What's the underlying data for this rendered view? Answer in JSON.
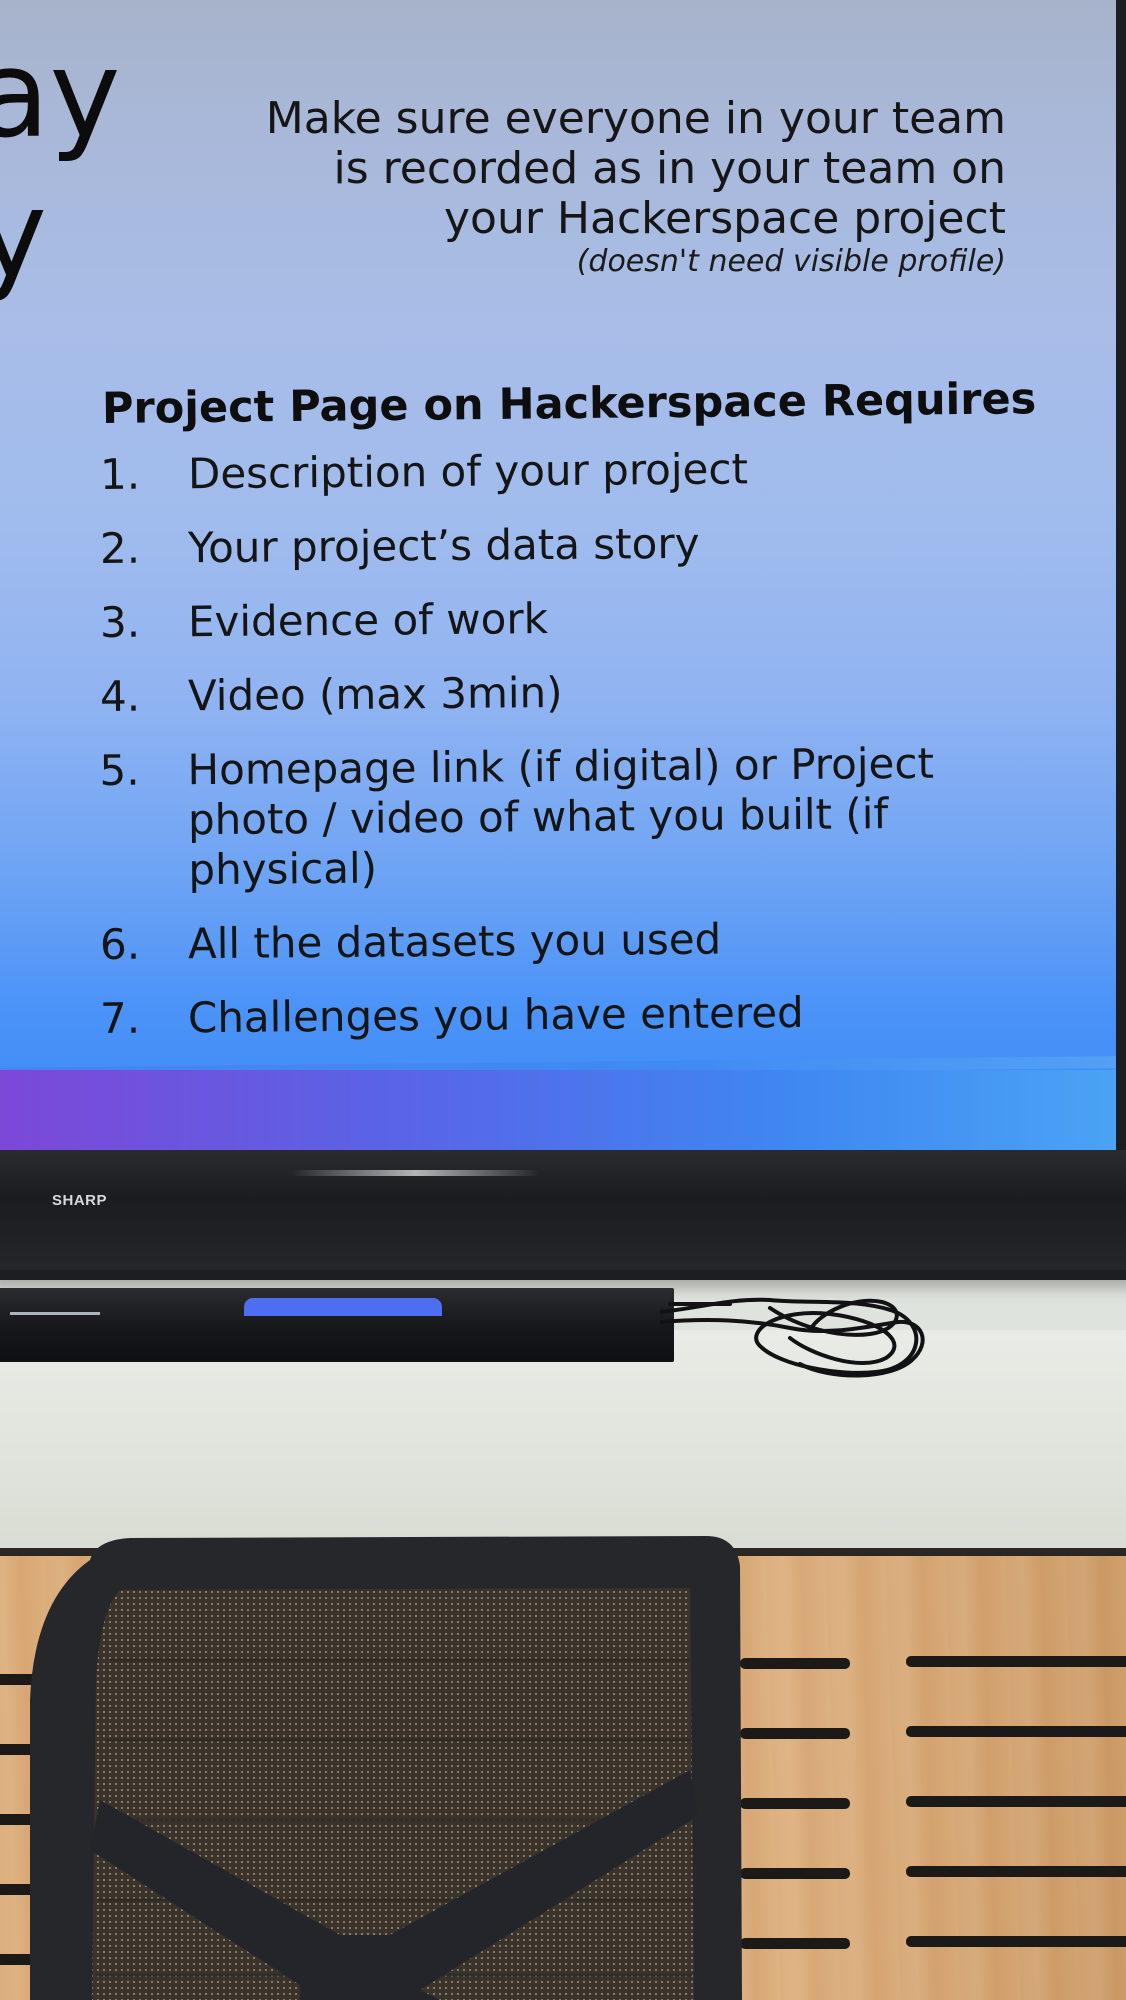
{
  "photo": {
    "subject": "TV screen showing a presentation slide above a desk and office chair",
    "colors": {
      "slide_top": "#a7b2c8",
      "slide_bottom": "#3a88f8",
      "taskbar_left": "#7d47d8",
      "taskbar_right": "#4aa3f4",
      "bezel": "#1d1e21",
      "desk_wood": "#d8a570",
      "chair": "#26272b"
    }
  },
  "slide": {
    "left_fragment": [
      "ay",
      "y"
    ],
    "note_lines": [
      "Make sure everyone in your team",
      "is recorded as in your team on",
      "your Hackerspace project"
    ],
    "note_italic": "(doesn't need visible profile)",
    "requirements_title": "Project Page on Hackerspace Requires",
    "requirements": [
      {
        "num": "1.",
        "text": "Description of your project"
      },
      {
        "num": "2.",
        "text": "Your project’s data story"
      },
      {
        "num": "3.",
        "text": "Evidence of work"
      },
      {
        "num": "4.",
        "text": "Video (max 3min)"
      },
      {
        "num": "5.",
        "text": "Homepage link (if digital) or Project photo / video of what you built (if physical)"
      },
      {
        "num": "6.",
        "text": "All the datasets you used"
      },
      {
        "num": "7.",
        "text": "Challenges you have entered"
      }
    ]
  },
  "monitor": {
    "brand": "SHARP"
  }
}
